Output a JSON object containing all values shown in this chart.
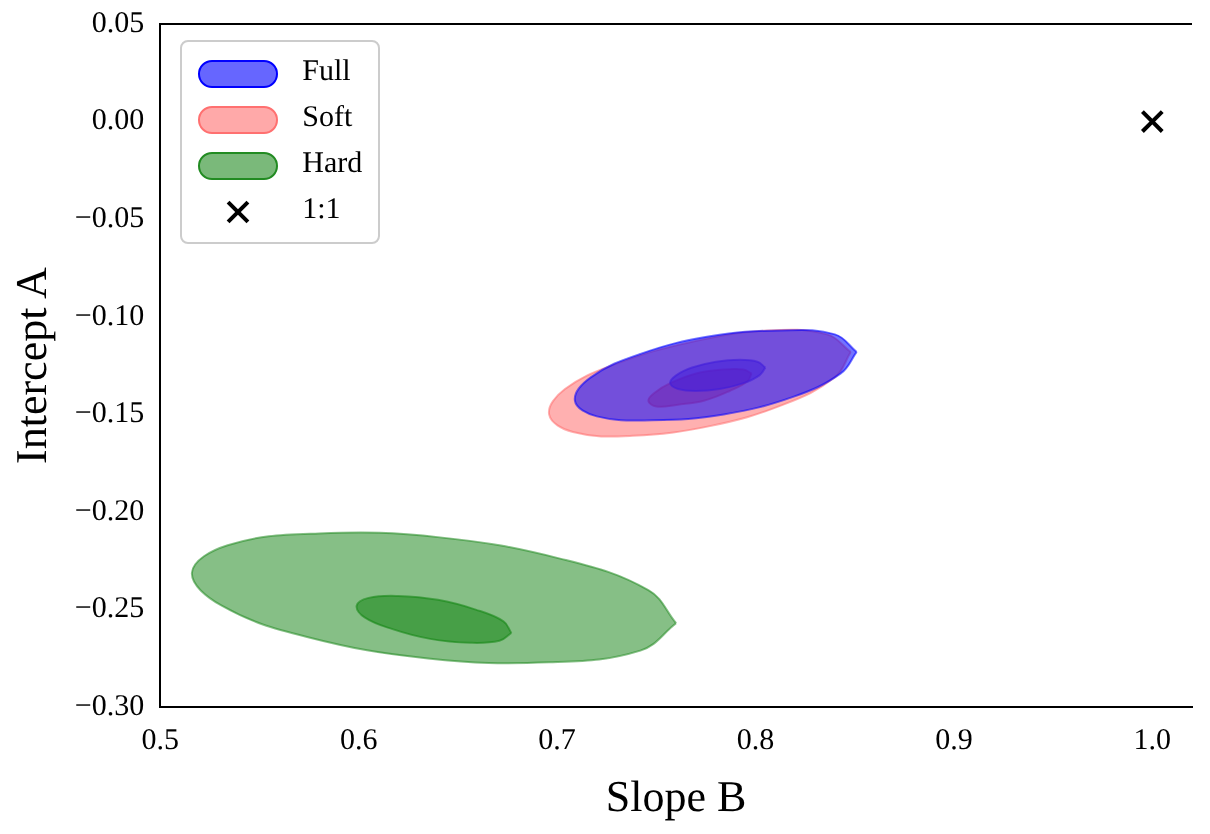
{
  "chart_data": {
    "type": "area",
    "xlabel": "Slope B",
    "ylabel": "Intercept A",
    "xlim": [
      0.5,
      1.02
    ],
    "xticks": [
      0.5,
      0.6,
      0.7,
      0.8,
      0.9,
      {
        "value": 1,
        "label": "1.0"
      }
    ],
    "ylim": [
      -0.3,
      0.05
    ],
    "yticks": [
      {
        "value": -0.3,
        "label": "−0.30"
      },
      {
        "value": -0.25,
        "label": "−0.25"
      },
      {
        "value": -0.2,
        "label": "−0.20"
      },
      {
        "value": -0.15,
        "label": "−0.15"
      },
      {
        "value": -0.1,
        "label": "−0.10"
      },
      {
        "value": -0.05,
        "label": "−0.05"
      },
      {
        "value": 0,
        "label": "0.00"
      },
      0.05
    ],
    "grid": false,
    "legend": "top left",
    "series": [
      {
        "name": "Full",
        "color": "#0000ff",
        "x": [
          0.851,
          0.84,
          0.813,
          0.777,
          0.742,
          0.717,
          0.709,
          0.72,
          0.748,
          0.784,
          0.819,
          0.843
        ],
        "values": [
          -0.118,
          -0.109,
          -0.107,
          -0.11,
          -0.119,
          -0.131,
          -0.143,
          -0.151,
          -0.153,
          -0.15,
          -0.141,
          -0.129
        ]
      },
      {
        "name": "Soft",
        "color": "#ff7070",
        "x": [
          0.848,
          0.836,
          0.806,
          0.767,
          0.73,
          0.704,
          0.696,
          0.708,
          0.738,
          0.777,
          0.814,
          0.84
        ],
        "values": [
          -0.118,
          -0.109,
          -0.107,
          -0.113,
          -0.124,
          -0.137,
          -0.15,
          -0.159,
          -0.161,
          -0.156,
          -0.145,
          -0.131
        ]
      },
      {
        "name": "Hard",
        "color": "#228b22",
        "x": [
          0.76,
          0.746,
          0.702,
          0.641,
          0.58,
          0.534,
          0.516,
          0.531,
          0.574,
          0.635,
          0.696,
          0.742
        ],
        "values": [
          -0.257,
          -0.24,
          -0.224,
          -0.213,
          -0.211,
          -0.217,
          -0.231,
          -0.248,
          -0.264,
          -0.275,
          -0.277,
          -0.271
        ]
      },
      {
        "color": "#0000ff",
        "x": [
          0.805,
          0.801,
          0.792,
          0.78,
          0.768,
          0.76,
          0.757,
          0.761,
          0.77,
          0.782,
          0.794,
          0.802
        ],
        "values": [
          -0.126,
          -0.123,
          -0.122,
          -0.123,
          -0.126,
          -0.13,
          -0.134,
          -0.137,
          -0.138,
          -0.137,
          -0.134,
          -0.13
        ]
      },
      {
        "color": "#ff3030",
        "x": [
          0.798,
          0.794,
          0.784,
          0.77,
          0.757,
          0.749,
          0.746,
          0.75,
          0.761,
          0.774,
          0.787,
          0.796
        ],
        "values": [
          -0.129,
          -0.127,
          -0.127,
          -0.129,
          -0.134,
          -0.139,
          -0.143,
          -0.146,
          -0.145,
          -0.143,
          -0.138,
          -0.133
        ]
      },
      {
        "color": "#008000",
        "x": [
          0.677,
          0.673,
          0.659,
          0.64,
          0.62,
          0.605,
          0.599,
          0.603,
          0.617,
          0.636,
          0.656,
          0.671
        ],
        "values": [
          -0.262,
          -0.256,
          -0.25,
          -0.245,
          -0.243,
          -0.244,
          -0.248,
          -0.254,
          -0.26,
          -0.265,
          -0.267,
          -0.266
        ]
      },
      {
        "name": "1:1",
        "type": "scatter",
        "marker": "cross",
        "color": "#000000",
        "x": [
          1
        ],
        "values": [
          0
        ]
      }
    ]
  }
}
